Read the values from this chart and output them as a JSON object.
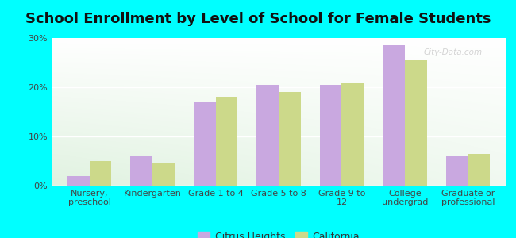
{
  "title": "School Enrollment by Level of School for Female Students",
  "categories": [
    "Nursery,\npreschool",
    "Kindergarten",
    "Grade 1 to 4",
    "Grade 5 to 8",
    "Grade 9 to\n12",
    "College\nundergrad",
    "Graduate or\nprofessional"
  ],
  "citrus_heights": [
    2.0,
    6.0,
    17.0,
    20.5,
    20.5,
    28.5,
    6.0
  ],
  "california": [
    5.0,
    4.5,
    18.0,
    19.0,
    21.0,
    25.5,
    6.5
  ],
  "citrus_color": "#c9a8e0",
  "california_color": "#ccd98a",
  "background_color": "#00FFFF",
  "ylim": [
    0,
    30
  ],
  "yticks": [
    0,
    10,
    20,
    30
  ],
  "ytick_labels": [
    "0%",
    "10%",
    "20%",
    "30%"
  ],
  "bar_width": 0.35,
  "legend_labels": [
    "Citrus Heights",
    "California"
  ],
  "watermark": "City-Data.com",
  "title_fontsize": 13,
  "tick_fontsize": 8,
  "legend_fontsize": 9,
  "grad_colors": [
    "#c8e8b0",
    "#e8f8e0",
    "#f0faf0",
    "#ffffff"
  ],
  "grid_color": "#ffffff"
}
